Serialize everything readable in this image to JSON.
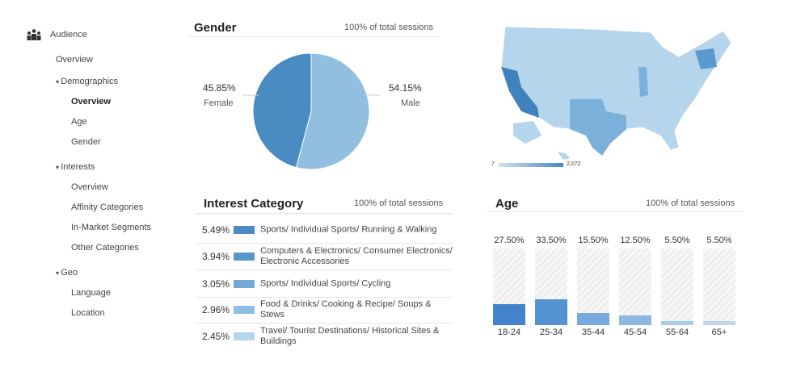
{
  "sidebar": {
    "title": "Audience",
    "items": [
      {
        "label": "Overview",
        "level": 0
      },
      {
        "label": "Demographics",
        "level": 0,
        "expanded": true
      },
      {
        "label": "Overview",
        "level": 1,
        "selected": true
      },
      {
        "label": "Age",
        "level": 1
      },
      {
        "label": "Gender",
        "level": 1
      },
      {
        "label": "Interests",
        "level": 0,
        "expanded": true
      },
      {
        "label": "Overview",
        "level": 1
      },
      {
        "label": "Affinity Categories",
        "level": 1
      },
      {
        "label": "In-Market Segments",
        "level": 1
      },
      {
        "label": "Other Categories",
        "level": 1
      },
      {
        "label": "Geo",
        "level": 0,
        "expanded": true
      },
      {
        "label": "Language",
        "level": 1
      },
      {
        "label": "Location",
        "level": 1
      }
    ]
  },
  "gender": {
    "title": "Gender",
    "subtitle": "100% of total sessions",
    "female": {
      "pct": "45.85%",
      "label": "Female",
      "value": 45.85,
      "color": "#4a8bc2"
    },
    "male": {
      "pct": "54.15%",
      "label": "Male",
      "value": 54.15,
      "color": "#92bfdf"
    }
  },
  "map": {
    "legend_min": "7",
    "legend_max": "2,072"
  },
  "interest": {
    "title": "Interest Category",
    "subtitle": "100% of total sessions",
    "rows": [
      {
        "pct": "5.49%",
        "label": "Sports/ Individual Sports/ Running & Walking",
        "color": "#4a8bc2"
      },
      {
        "pct": "3.94%",
        "label": "Computers & Electronics/ Consumer Electronics/ Electronic Accessories",
        "color": "#5a97c9"
      },
      {
        "pct": "3.05%",
        "label": "Sports/ Individual Sports/ Cycling",
        "color": "#74a9d5"
      },
      {
        "pct": "2.96%",
        "label": "Food & Drinks/ Cooking & Recipe/ Soups & Stews",
        "color": "#8dbde0"
      },
      {
        "pct": "2.45%",
        "label": "Travel/ Tourist Destinations/ Historical Sites & Buildings",
        "color": "#b2d4ec"
      }
    ]
  },
  "age": {
    "title": "Age",
    "subtitle": "100% of total sessions",
    "bars": [
      {
        "cat": "18-24",
        "pct": "27.50%",
        "value": 27.5,
        "color": "#4483cc"
      },
      {
        "cat": "25-34",
        "pct": "33.50%",
        "value": 33.5,
        "color": "#5592d4"
      },
      {
        "cat": "35-44",
        "pct": "15.50%",
        "value": 15.5,
        "color": "#78a9dc"
      },
      {
        "cat": "45-54",
        "pct": "12.50%",
        "value": 12.5,
        "color": "#8db8e2"
      },
      {
        "cat": "55-64",
        "pct": "5.50%",
        "value": 5.5,
        "color": "#a9cbea"
      },
      {
        "cat": "65+",
        "pct": "5.50%",
        "value": 5.5,
        "color": "#bcd7ee"
      }
    ]
  }
}
